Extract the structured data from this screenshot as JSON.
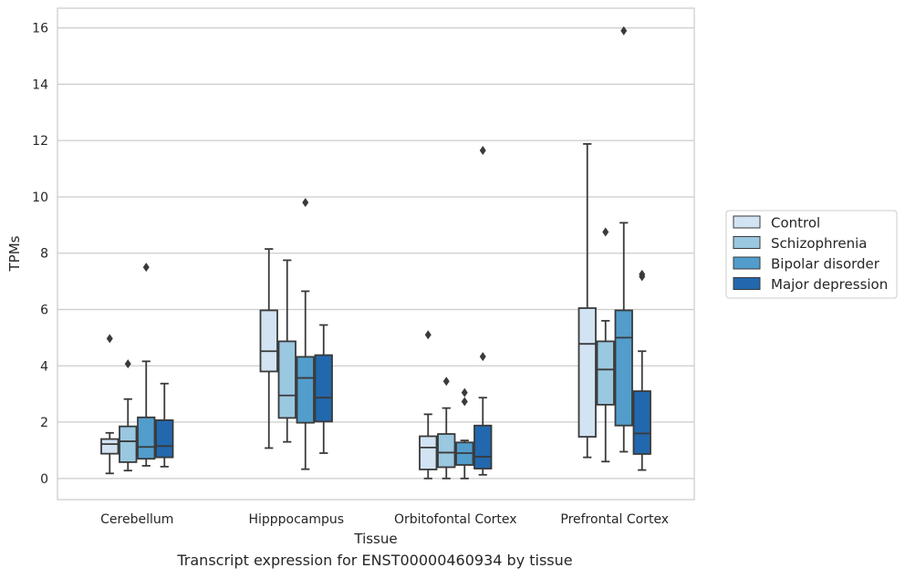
{
  "caption": "Transcript expression for ENST00000460934 by tissue",
  "colors": {
    "Control": "#d2e3f3",
    "Schizophrenia": "#9ac8e0",
    "Bipolar disorder": "#529dcc",
    "Major depression": "#2268ae",
    "line": "#3a3a3a",
    "grid": "#cccccc"
  },
  "chart_data": {
    "type": "box",
    "xlabel": "Tissue",
    "ylabel": "TPMs",
    "ylim": [
      -0.75,
      16.7
    ],
    "yticks": [
      0,
      2,
      4,
      6,
      8,
      10,
      12,
      14,
      16
    ],
    "grid": true,
    "legend_position": "right",
    "categories": [
      "Cerebellum",
      "Hipppocampus",
      "Orbitofontal Cortex",
      "Prefrontal Cortex"
    ],
    "series": [
      {
        "name": "Control",
        "boxes": [
          {
            "whislo": 0.18,
            "q1": 0.88,
            "med": 1.22,
            "q3": 1.4,
            "whishi": 1.62,
            "fliers": [
              4.97
            ]
          },
          {
            "whislo": 1.08,
            "q1": 3.8,
            "med": 4.52,
            "q3": 5.97,
            "whishi": 8.15,
            "fliers": []
          },
          {
            "whislo": 0.0,
            "q1": 0.32,
            "med": 1.1,
            "q3": 1.5,
            "whishi": 2.28,
            "fliers": [
              5.1
            ]
          },
          {
            "whislo": 0.75,
            "q1": 1.48,
            "med": 4.78,
            "q3": 6.05,
            "whishi": 11.88,
            "fliers": []
          }
        ]
      },
      {
        "name": "Schizophrenia",
        "boxes": [
          {
            "whislo": 0.28,
            "q1": 0.58,
            "med": 1.32,
            "q3": 1.85,
            "whishi": 2.82,
            "fliers": [
              4.07
            ]
          },
          {
            "whislo": 1.3,
            "q1": 2.15,
            "med": 2.95,
            "q3": 4.87,
            "whishi": 7.75,
            "fliers": []
          },
          {
            "whislo": 0.0,
            "q1": 0.4,
            "med": 0.92,
            "q3": 1.58,
            "whishi": 2.5,
            "fliers": [
              3.45
            ]
          },
          {
            "whislo": 0.6,
            "q1": 2.62,
            "med": 3.87,
            "q3": 4.87,
            "whishi": 5.6,
            "fliers": [
              8.75
            ]
          }
        ]
      },
      {
        "name": "Bipolar disorder",
        "boxes": [
          {
            "whislo": 0.45,
            "q1": 0.7,
            "med": 1.12,
            "q3": 2.17,
            "whishi": 4.16,
            "fliers": [
              7.5
            ]
          },
          {
            "whislo": 0.33,
            "q1": 1.98,
            "med": 3.57,
            "q3": 4.32,
            "whishi": 6.65,
            "fliers": [
              9.8
            ]
          },
          {
            "whislo": 0.0,
            "q1": 0.48,
            "med": 0.9,
            "q3": 1.28,
            "whishi": 1.35,
            "fliers": [
              2.73,
              3.05
            ]
          },
          {
            "whislo": 0.95,
            "q1": 1.88,
            "med": 5.0,
            "q3": 5.97,
            "whishi": 9.08,
            "fliers": [
              15.9
            ]
          }
        ]
      },
      {
        "name": "Major depression",
        "boxes": [
          {
            "whislo": 0.42,
            "q1": 0.75,
            "med": 1.15,
            "q3": 2.07,
            "whishi": 3.37,
            "fliers": []
          },
          {
            "whislo": 0.9,
            "q1": 2.02,
            "med": 2.87,
            "q3": 4.38,
            "whishi": 5.45,
            "fliers": []
          },
          {
            "whislo": 0.13,
            "q1": 0.35,
            "med": 0.77,
            "q3": 1.88,
            "whishi": 2.87,
            "fliers": [
              4.33,
              11.65
            ]
          },
          {
            "whislo": 0.3,
            "q1": 0.87,
            "med": 1.6,
            "q3": 3.1,
            "whishi": 4.52,
            "fliers": [
              7.17,
              7.25
            ]
          }
        ]
      }
    ]
  }
}
